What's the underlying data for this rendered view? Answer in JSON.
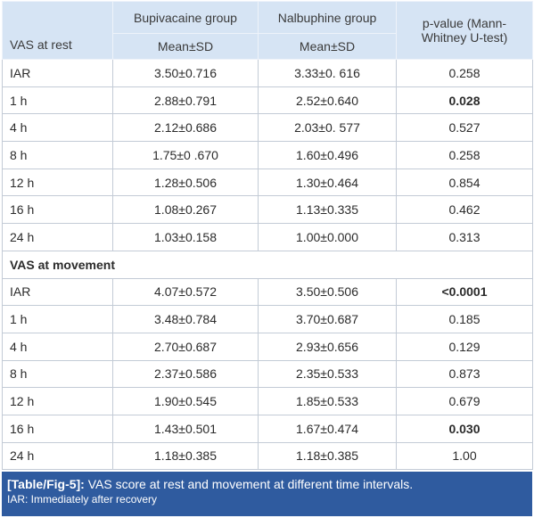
{
  "table": {
    "header": {
      "group1": "Bupivacaine group",
      "group2": "Nalbuphine group",
      "pvalue": "p-value (Mann-Whitney U-test)",
      "stat1": "Mean±SD",
      "stat2": "Mean±SD"
    },
    "sections": [
      {
        "title": "VAS at rest",
        "rows": [
          [
            "IAR",
            "3.50±0.716",
            "3.33±0. 616",
            "0.258"
          ],
          [
            "1 h",
            "2.88±0.791",
            "2.52±0.640",
            "0.028"
          ],
          [
            "4 h",
            "2.12±0.686",
            "2.03±0. 577",
            "0.527"
          ],
          [
            "8 h",
            "1.75±0 .670",
            "1.60±0.496",
            "0.258"
          ],
          [
            "12 h",
            "1.28±0.506",
            "1.30±0.464",
            "0.854"
          ],
          [
            "16 h",
            "1.08±0.267",
            "1.13±0.335",
            "0.462"
          ],
          [
            "24 h",
            "1.03±0.158",
            "1.00±0.000",
            "0.313"
          ]
        ]
      },
      {
        "title": "VAS at movement",
        "rows": [
          [
            "IAR",
            "4.07±0.572",
            "3.50±0.506",
            "<0.0001"
          ],
          [
            "1 h",
            "3.48±0.784",
            "3.70±0.687",
            "0.185"
          ],
          [
            "4 h",
            "2.70±0.687",
            "2.93±0.656",
            "0.129"
          ],
          [
            "8 h",
            "2.37±0.586",
            "2.35±0.533",
            "0.873"
          ],
          [
            "12 h",
            "1.90±0.545",
            "1.85±0.533",
            "0.679"
          ],
          [
            "16 h",
            "1.43±0.501",
            "1.67±0.474",
            "0.030"
          ],
          [
            "24 h",
            "1.18±0.385",
            "1.18±0.385",
            "1.00"
          ]
        ]
      }
    ]
  },
  "caption": {
    "label": "[Table/Fig-5]:",
    "text": "VAS score at rest and movement at different time intervals.",
    "note": "IAR: Immediately after recovery"
  }
}
